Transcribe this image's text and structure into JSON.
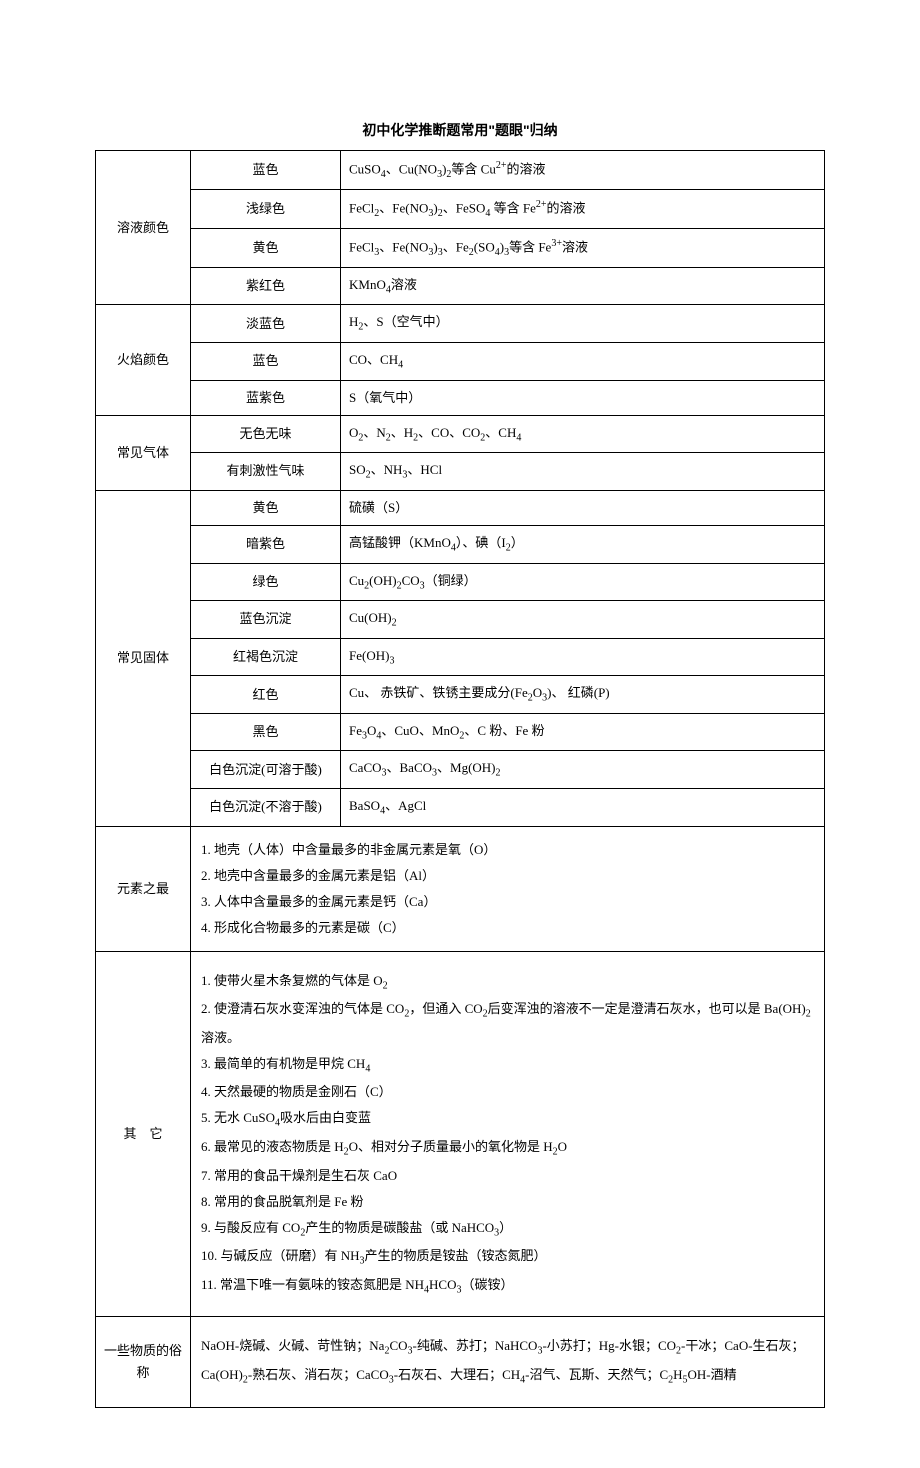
{
  "title": "初中化学推断题常用\"题眼\"归纳",
  "solutionColor": {
    "category": "溶液颜色",
    "rows": [
      {
        "prop": "蓝色",
        "content": "CuSO₄、Cu(NO₃)₂等含 Cu²⁺的溶液"
      },
      {
        "prop": "浅绿色",
        "content": "FeCl₂、Fe(NO₃)₂、FeSO₄ 等含 Fe²⁺的溶液"
      },
      {
        "prop": "黄色",
        "content": "FeCl₃、Fe(NO₃)₃、Fe₂(SO₄)₃等含 Fe³⁺溶液"
      },
      {
        "prop": "紫红色",
        "content": "KMnO₄溶液"
      }
    ]
  },
  "flameColor": {
    "category": "火焰颜色",
    "rows": [
      {
        "prop": "淡蓝色",
        "content": "H₂、S（空气中）"
      },
      {
        "prop": "蓝色",
        "content": "CO、CH₄"
      },
      {
        "prop": "蓝紫色",
        "content": "S（氧气中）"
      }
    ]
  },
  "commonGas": {
    "category": "常见气体",
    "rows": [
      {
        "prop": "无色无味",
        "content": "O₂、N₂、H₂、CO、CO₂、CH₄"
      },
      {
        "prop": "有刺激性气味",
        "content": "SO₂、NH₃、HCl"
      }
    ]
  },
  "commonSolid": {
    "category": "常见固体",
    "rows": [
      {
        "prop": "黄色",
        "content": "硫磺（S）"
      },
      {
        "prop": "暗紫色",
        "content": "高锰酸钾（KMnO₄）、碘（I₂）"
      },
      {
        "prop": "绿色",
        "content": "Cu₂(OH)₂CO₃（铜绿）"
      },
      {
        "prop": "蓝色沉淀",
        "content": "Cu(OH)₂"
      },
      {
        "prop": "红褐色沉淀",
        "content": "Fe(OH)₃"
      },
      {
        "prop": "红色",
        "content": "Cu、 赤铁矿、铁锈主要成分(Fe₂O₃)、 红磷(P)"
      },
      {
        "prop": "黑色",
        "content": "Fe₃O₄、CuO、MnO₂、C 粉、Fe 粉"
      },
      {
        "prop": "白色沉淀(可溶于酸)",
        "content": "CaCO₃、BaCO₃、Mg(OH)₂"
      },
      {
        "prop": "白色沉淀(不溶于酸)",
        "content": "BaSO₄、AgCl"
      }
    ]
  },
  "elementMost": {
    "category": "元素之最",
    "items": [
      "1. 地壳（人体）中含量最多的非金属元素是氧（O）",
      "2. 地壳中含量最多的金属元素是铝（Al）",
      "3. 人体中含量最多的金属元素是钙（Ca）",
      "4. 形成化合物最多的元素是碳（C）"
    ]
  },
  "others": {
    "category": "其　它",
    "items": [
      "1. 使带火星木条复燃的气体是 O₂",
      "2. 使澄清石灰水变浑浊的气体是 CO₂，但通入 CO₂后变浑浊的溶液不一定是澄清石灰水，也可以是 Ba(OH)₂溶液。",
      "3. 最简单的有机物是甲烷 CH₄",
      "4. 天然最硬的物质是金刚石（C）",
      "5. 无水 CuSO₄吸水后由白变蓝",
      "6. 最常见的液态物质是 H₂O、相对分子质量最小的氧化物是 H₂O",
      "7. 常用的食品干燥剂是生石灰 CaO",
      "8. 常用的食品脱氧剂是 Fe 粉",
      "9. 与酸反应有 CO₂产生的物质是碳酸盐（或 NaHCO₃）",
      "10. 与碱反应（研磨）有 NH₃产生的物质是铵盐（铵态氮肥）",
      "11. 常温下唯一有氨味的铵态氮肥是 NH₄HCO₃（碳铵）"
    ]
  },
  "commonNames": {
    "category": "一些物质的俗称",
    "content": "NaOH-烧碱、火碱、苛性钠；Na₂CO₃-纯碱、苏打；NaHCO₃-小苏打；Hg-水银；CO₂-干冰；CaO-生石灰；Ca(OH)₂-熟石灰、消石灰；CaCO₃-石灰石、大理石；CH₄-沼气、瓦斯、天然气；C₂H₅OH-酒精"
  }
}
